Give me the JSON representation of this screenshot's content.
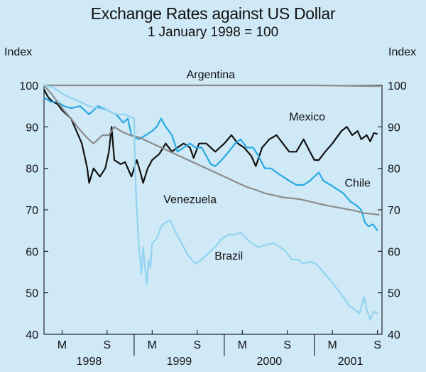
{
  "chart_data": {
    "type": "line",
    "title": "Exchange Rates against US Dollar",
    "subtitle": "1 January 1998 = 100",
    "ylabel_left": "Index",
    "ylabel_right": "Index",
    "ylim": [
      40,
      100
    ],
    "yticks": [
      40,
      50,
      60,
      70,
      80,
      90,
      100
    ],
    "xlim": [
      1998.0,
      2001.75
    ],
    "month_ticks": [
      {
        "label": "M",
        "x": 1998.2
      },
      {
        "label": "S",
        "x": 1998.7
      },
      {
        "label": "M",
        "x": 1999.2
      },
      {
        "label": "S",
        "x": 1999.7
      },
      {
        "label": "M",
        "x": 2000.2
      },
      {
        "label": "S",
        "x": 2000.7
      },
      {
        "label": "M",
        "x": 2001.2
      },
      {
        "label": "S",
        "x": 2001.7
      }
    ],
    "year_labels": [
      {
        "label": "1998",
        "x": 1998.5
      },
      {
        "label": "1999",
        "x": 1999.5
      },
      {
        "label": "2000",
        "x": 2000.5
      },
      {
        "label": "2001",
        "x": 2001.4
      }
    ],
    "series": [
      {
        "name": "Argentina",
        "color": "#8c8c8c",
        "label_at": [
          1999.85,
          101.7
        ],
        "points": [
          [
            1998.0,
            100
          ],
          [
            1998.5,
            100
          ],
          [
            1999.0,
            100
          ],
          [
            1999.5,
            100
          ],
          [
            2000.0,
            100
          ],
          [
            2000.5,
            100
          ],
          [
            2001.0,
            100
          ],
          [
            2001.73,
            99.8
          ]
        ]
      },
      {
        "name": "Mexico",
        "color": "#111111",
        "label_at": [
          2000.92,
          91.5
        ],
        "points": [
          [
            1998.0,
            99
          ],
          [
            1998.05,
            97
          ],
          [
            1998.1,
            96
          ],
          [
            1998.15,
            95.5
          ],
          [
            1998.2,
            94
          ],
          [
            1998.3,
            92
          ],
          [
            1998.38,
            88
          ],
          [
            1998.42,
            86
          ],
          [
            1998.48,
            80
          ],
          [
            1998.5,
            76.5
          ],
          [
            1998.55,
            80
          ],
          [
            1998.62,
            78
          ],
          [
            1998.68,
            80
          ],
          [
            1998.72,
            84
          ],
          [
            1998.75,
            90
          ],
          [
            1998.78,
            82
          ],
          [
            1998.85,
            81
          ],
          [
            1998.9,
            81.5
          ],
          [
            1998.97,
            78
          ],
          [
            1999.03,
            82
          ],
          [
            1999.07,
            79
          ],
          [
            1999.1,
            76.5
          ],
          [
            1999.15,
            80
          ],
          [
            1999.2,
            82
          ],
          [
            1999.28,
            83.5
          ],
          [
            1999.35,
            86
          ],
          [
            1999.42,
            84
          ],
          [
            1999.48,
            85
          ],
          [
            1999.55,
            86
          ],
          [
            1999.62,
            85
          ],
          [
            1999.66,
            82.5
          ],
          [
            1999.72,
            86
          ],
          [
            1999.8,
            86
          ],
          [
            1999.9,
            84
          ],
          [
            2000.0,
            86
          ],
          [
            2000.08,
            88
          ],
          [
            2000.15,
            86
          ],
          [
            2000.22,
            85
          ],
          [
            2000.3,
            83
          ],
          [
            2000.35,
            80.5
          ],
          [
            2000.42,
            85
          ],
          [
            2000.5,
            87
          ],
          [
            2000.58,
            88
          ],
          [
            2000.65,
            86
          ],
          [
            2000.72,
            84
          ],
          [
            2000.8,
            84
          ],
          [
            2000.88,
            87
          ],
          [
            2000.95,
            84
          ],
          [
            2001.0,
            82
          ],
          [
            2001.05,
            82
          ],
          [
            2001.12,
            84
          ],
          [
            2001.2,
            86
          ],
          [
            2001.3,
            89
          ],
          [
            2001.36,
            90
          ],
          [
            2001.42,
            88
          ],
          [
            2001.48,
            89
          ],
          [
            2001.52,
            87
          ],
          [
            2001.58,
            88
          ],
          [
            2001.62,
            86.5
          ],
          [
            2001.66,
            88.5
          ],
          [
            2001.7,
            88.3
          ]
        ]
      },
      {
        "name": "Chile",
        "color": "#29a9e1",
        "label_at": [
          2001.48,
          75.6
        ],
        "points": [
          [
            1998.0,
            97
          ],
          [
            1998.08,
            96
          ],
          [
            1998.15,
            96
          ],
          [
            1998.22,
            95
          ],
          [
            1998.3,
            94.5
          ],
          [
            1998.4,
            95
          ],
          [
            1998.5,
            93
          ],
          [
            1998.6,
            95
          ],
          [
            1998.7,
            94
          ],
          [
            1998.8,
            93
          ],
          [
            1998.88,
            91
          ],
          [
            1998.93,
            92
          ],
          [
            1998.97,
            88
          ],
          [
            1999.05,
            87
          ],
          [
            1999.13,
            88
          ],
          [
            1999.2,
            89
          ],
          [
            1999.25,
            90
          ],
          [
            1999.3,
            92
          ],
          [
            1999.35,
            90
          ],
          [
            1999.42,
            88
          ],
          [
            1999.48,
            84
          ],
          [
            1999.55,
            85
          ],
          [
            1999.62,
            86
          ],
          [
            1999.68,
            85
          ],
          [
            1999.75,
            85
          ],
          [
            1999.8,
            83
          ],
          [
            1999.85,
            81
          ],
          [
            1999.9,
            80.5
          ],
          [
            1999.97,
            82
          ],
          [
            2000.05,
            84
          ],
          [
            2000.12,
            86
          ],
          [
            2000.18,
            87
          ],
          [
            2000.25,
            85
          ],
          [
            2000.32,
            85
          ],
          [
            2000.38,
            83
          ],
          [
            2000.45,
            80
          ],
          [
            2000.52,
            80
          ],
          [
            2000.58,
            79
          ],
          [
            2000.65,
            78
          ],
          [
            2000.72,
            77
          ],
          [
            2000.8,
            76
          ],
          [
            2000.88,
            76
          ],
          [
            2000.95,
            77
          ],
          [
            2001.0,
            78
          ],
          [
            2001.05,
            79
          ],
          [
            2001.1,
            77
          ],
          [
            2001.18,
            76
          ],
          [
            2001.25,
            75
          ],
          [
            2001.32,
            74
          ],
          [
            2001.4,
            72
          ],
          [
            2001.47,
            71
          ],
          [
            2001.52,
            70
          ],
          [
            2001.56,
            67
          ],
          [
            2001.6,
            66
          ],
          [
            2001.65,
            66.5
          ],
          [
            2001.7,
            65
          ]
        ]
      },
      {
        "name": "Venezuela",
        "color": "#8c8c8c",
        "label_at": [
          1999.62,
          71.6
        ],
        "points": [
          [
            1998.0,
            100
          ],
          [
            1998.08,
            98
          ],
          [
            1998.15,
            96
          ],
          [
            1998.22,
            94
          ],
          [
            1998.3,
            92
          ],
          [
            1998.37,
            90
          ],
          [
            1998.45,
            88
          ],
          [
            1998.52,
            86.5
          ],
          [
            1998.55,
            86
          ],
          [
            1998.6,
            87
          ],
          [
            1998.65,
            88
          ],
          [
            1998.72,
            88
          ],
          [
            1998.78,
            90
          ],
          [
            1998.85,
            89
          ],
          [
            1998.95,
            88
          ],
          [
            1999.05,
            87.5
          ],
          [
            1999.15,
            86.5
          ],
          [
            1999.25,
            85.5
          ],
          [
            1999.35,
            84.5
          ],
          [
            1999.45,
            83.5
          ],
          [
            1999.55,
            82.5
          ],
          [
            1999.65,
            81.5
          ],
          [
            1999.75,
            80.5
          ],
          [
            1999.85,
            79.5
          ],
          [
            1999.95,
            78.5
          ],
          [
            2000.05,
            77.5
          ],
          [
            2000.15,
            76.5
          ],
          [
            2000.25,
            75.5
          ],
          [
            2000.35,
            74.8
          ],
          [
            2000.45,
            74
          ],
          [
            2000.55,
            73.5
          ],
          [
            2000.65,
            73
          ],
          [
            2000.75,
            72.8
          ],
          [
            2000.85,
            72.5
          ],
          [
            2000.95,
            72
          ],
          [
            2001.05,
            71.5
          ],
          [
            2001.15,
            71
          ],
          [
            2001.25,
            70.6
          ],
          [
            2001.35,
            70.2
          ],
          [
            2001.45,
            69.8
          ],
          [
            2001.55,
            69.2
          ],
          [
            2001.65,
            69
          ],
          [
            2001.72,
            68.8
          ]
        ]
      },
      {
        "name": "Brazil",
        "color": "#93d3f0",
        "label_at": [
          2000.05,
          58
        ],
        "points": [
          [
            1998.0,
            100
          ],
          [
            1998.1,
            99.5
          ],
          [
            1998.2,
            98
          ],
          [
            1998.3,
            97
          ],
          [
            1998.4,
            96
          ],
          [
            1998.5,
            95
          ],
          [
            1998.6,
            94.5
          ],
          [
            1998.7,
            94
          ],
          [
            1998.8,
            93
          ],
          [
            1998.9,
            93
          ],
          [
            1999.0,
            92
          ],
          [
            1999.01,
            80
          ],
          [
            1999.03,
            70
          ],
          [
            1999.05,
            62
          ],
          [
            1999.07,
            57
          ],
          [
            1999.08,
            54.5
          ],
          [
            1999.1,
            61
          ],
          [
            1999.12,
            56
          ],
          [
            1999.14,
            52
          ],
          [
            1999.16,
            58
          ],
          [
            1999.18,
            56
          ],
          [
            1999.2,
            62
          ],
          [
            1999.25,
            63
          ],
          [
            1999.3,
            66
          ],
          [
            1999.35,
            67
          ],
          [
            1999.4,
            67.5
          ],
          [
            1999.45,
            65
          ],
          [
            1999.5,
            63
          ],
          [
            1999.55,
            61
          ],
          [
            1999.6,
            59
          ],
          [
            1999.68,
            57
          ],
          [
            1999.75,
            58
          ],
          [
            1999.82,
            59.5
          ],
          [
            1999.9,
            61
          ],
          [
            1999.97,
            63
          ],
          [
            2000.05,
            64
          ],
          [
            2000.12,
            64
          ],
          [
            2000.18,
            64.5
          ],
          [
            2000.25,
            63
          ],
          [
            2000.3,
            62
          ],
          [
            2000.38,
            61
          ],
          [
            2000.45,
            61.5
          ],
          [
            2000.55,
            62
          ],
          [
            2000.62,
            61
          ],
          [
            2000.68,
            60
          ],
          [
            2000.75,
            58
          ],
          [
            2000.82,
            58
          ],
          [
            2000.88,
            57
          ],
          [
            2000.95,
            57.5
          ],
          [
            2001.02,
            57
          ],
          [
            2001.1,
            55
          ],
          [
            2001.18,
            53
          ],
          [
            2001.25,
            51
          ],
          [
            2001.32,
            49
          ],
          [
            2001.38,
            47
          ],
          [
            2001.45,
            46
          ],
          [
            2001.5,
            45
          ],
          [
            2001.55,
            49
          ],
          [
            2001.58,
            46
          ],
          [
            2001.62,
            43.5
          ],
          [
            2001.66,
            45.5
          ],
          [
            2001.7,
            45
          ]
        ]
      }
    ]
  }
}
